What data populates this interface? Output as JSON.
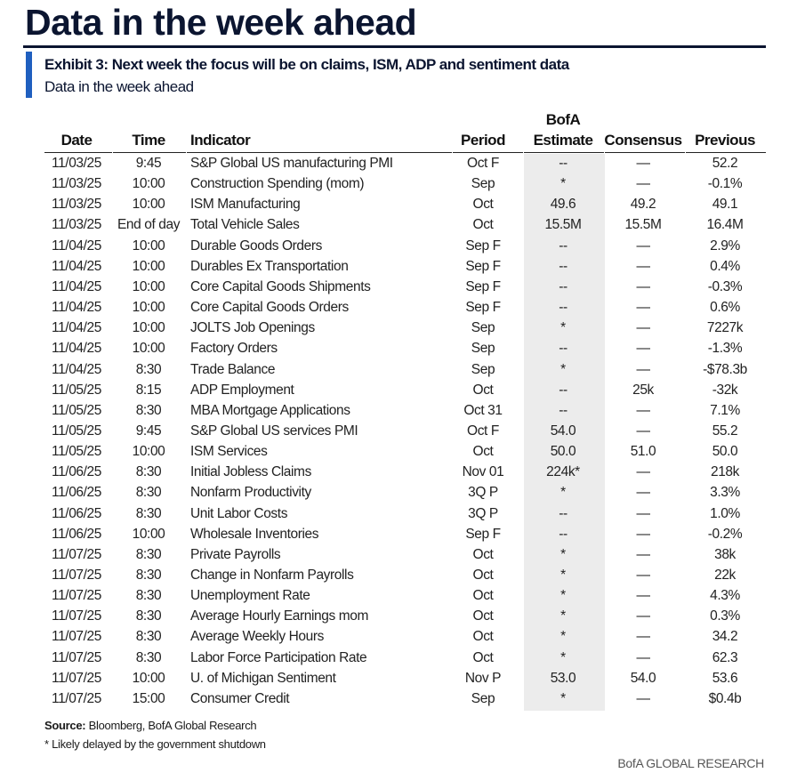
{
  "title": "Data in the week ahead",
  "exhibit": {
    "title": "Exhibit 3: Next week the focus will be on claims, ISM, ADP and sentiment data",
    "subtitle": "Data in the week ahead"
  },
  "headers": {
    "date": "Date",
    "time": "Time",
    "indicator": "Indicator",
    "period": "Period",
    "bofa_line1": "BofA",
    "bofa_line2": "Estimate",
    "consensus": "Consensus",
    "previous": "Previous"
  },
  "rows": [
    [
      "11/03/25",
      "9:45",
      "S&P Global US manufacturing PMI",
      "Oct F",
      "--",
      "—",
      "52.2"
    ],
    [
      "11/03/25",
      "10:00",
      "Construction Spending (mom)",
      "Sep",
      "*",
      "—",
      "-0.1%"
    ],
    [
      "11/03/25",
      "10:00",
      "ISM Manufacturing",
      "Oct",
      "49.6",
      "49.2",
      "49.1"
    ],
    [
      "11/03/25",
      "End of day",
      "Total Vehicle Sales",
      "Oct",
      "15.5M",
      "15.5M",
      "16.4M"
    ],
    [
      "11/04/25",
      "10:00",
      "Durable Goods Orders",
      "Sep F",
      "--",
      "—",
      "2.9%"
    ],
    [
      "11/04/25",
      "10:00",
      "Durables Ex Transportation",
      "Sep F",
      "--",
      "—",
      "0.4%"
    ],
    [
      "11/04/25",
      "10:00",
      "Core Capital Goods Shipments",
      "Sep F",
      "--",
      "—",
      "-0.3%"
    ],
    [
      "11/04/25",
      "10:00",
      "Core Capital Goods Orders",
      "Sep F",
      "--",
      "—",
      "0.6%"
    ],
    [
      "11/04/25",
      "10:00",
      "JOLTS Job Openings",
      "Sep",
      "*",
      "—",
      "7227k"
    ],
    [
      "11/04/25",
      "10:00",
      "Factory Orders",
      "Sep",
      "--",
      "—",
      "-1.3%"
    ],
    [
      "11/04/25",
      "8:30",
      "Trade Balance",
      "Sep",
      "*",
      "—",
      "-$78.3b"
    ],
    [
      "11/05/25",
      "8:15",
      "ADP Employment",
      "Oct",
      "--",
      "25k",
      "-32k"
    ],
    [
      "11/05/25",
      "8:30",
      "MBA Mortgage Applications",
      "Oct 31",
      "--",
      "—",
      "7.1%"
    ],
    [
      "11/05/25",
      "9:45",
      "S&P Global US services PMI",
      "Oct F",
      "54.0",
      "—",
      "55.2"
    ],
    [
      "11/05/25",
      "10:00",
      "ISM Services",
      "Oct",
      "50.0",
      "51.0",
      "50.0"
    ],
    [
      "11/06/25",
      "8:30",
      "Initial Jobless Claims",
      "Nov 01",
      "224k*",
      "—",
      "218k"
    ],
    [
      "11/06/25",
      "8:30",
      "Nonfarm Productivity",
      "3Q P",
      "*",
      "—",
      "3.3%"
    ],
    [
      "11/06/25",
      "8:30",
      "Unit Labor Costs",
      "3Q P",
      "--",
      "—",
      "1.0%"
    ],
    [
      "11/06/25",
      "10:00",
      "Wholesale Inventories",
      "Sep F",
      "--",
      "—",
      "-0.2%"
    ],
    [
      "11/07/25",
      "8:30",
      "Private Payrolls",
      "Oct",
      "*",
      "—",
      "38k"
    ],
    [
      "11/07/25",
      "8:30",
      "Change in Nonfarm Payrolls",
      "Oct",
      "*",
      "—",
      "22k"
    ],
    [
      "11/07/25",
      "8:30",
      "Unemployment Rate",
      "Oct",
      "*",
      "—",
      "4.3%"
    ],
    [
      "11/07/25",
      "8:30",
      "Average Hourly Earnings mom",
      "Oct",
      "*",
      "—",
      "0.3%"
    ],
    [
      "11/07/25",
      "8:30",
      "Average Weekly Hours",
      "Oct",
      "*",
      "—",
      "34.2"
    ],
    [
      "11/07/25",
      "8:30",
      "Labor Force Participation Rate",
      "Oct",
      "*",
      "—",
      "62.3"
    ],
    [
      "11/07/25",
      "10:00",
      "U. of Michigan Sentiment",
      "Nov P",
      "53.0",
      "54.0",
      "53.6"
    ],
    [
      "11/07/25",
      "15:00",
      "Consumer Credit",
      "Sep",
      "*",
      "—",
      "$0.4b"
    ]
  ],
  "source_label": "Source:",
  "source_text": " Bloomberg, BofA Global Research",
  "footnote": "* Likely delayed by the government shutdown",
  "brand": "BofA GLOBAL RESEARCH",
  "colors": {
    "navy": "#0b1530",
    "accent": "#1f5fbf",
    "shade": "#ececec"
  }
}
